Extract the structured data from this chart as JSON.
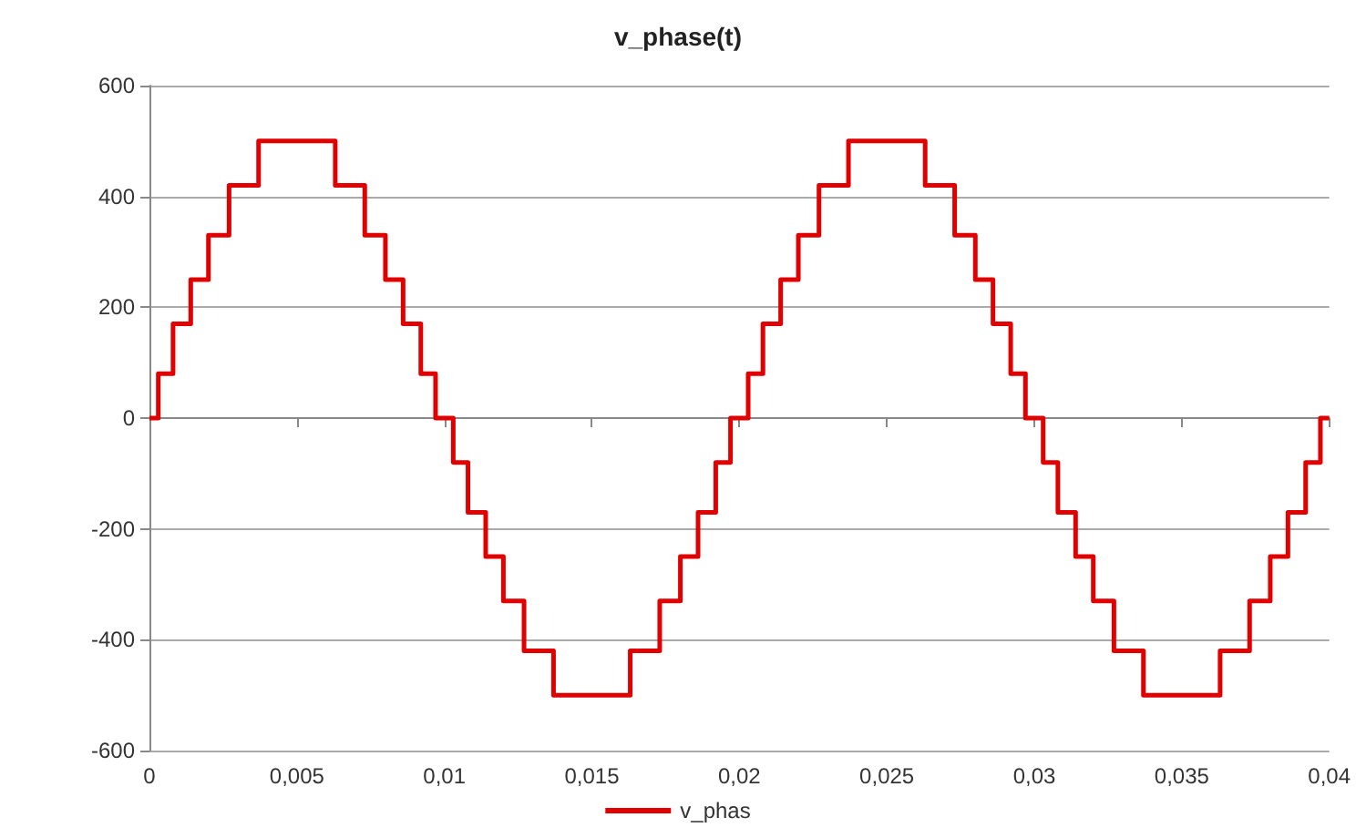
{
  "chart_data": {
    "type": "step",
    "title": "v_phase(t)",
    "x": [
      0,
      0.0003,
      0.0008,
      0.0014,
      0.002,
      0.0027,
      0.0037,
      0.0063,
      0.0073,
      0.008,
      0.0086,
      0.0092,
      0.0097,
      0.0103,
      0.0108,
      0.0114,
      0.012,
      0.0127,
      0.0137,
      0.0163,
      0.0173,
      0.018,
      0.0186,
      0.0192,
      0.0197,
      0.0203,
      0.0208,
      0.0214,
      0.022,
      0.0227,
      0.0237,
      0.0263,
      0.0273,
      0.028,
      0.0286,
      0.0292,
      0.0297,
      0.0303,
      0.0308,
      0.0314,
      0.032,
      0.0327,
      0.0337,
      0.0363,
      0.0373,
      0.038,
      0.0386,
      0.0392,
      0.0397,
      0.04
    ],
    "series": [
      {
        "name": "v_phas",
        "color": "#e00000",
        "values": [
          0,
          80,
          170,
          250,
          330,
          420,
          500,
          420,
          330,
          250,
          170,
          80,
          0,
          -80,
          -170,
          -250,
          -330,
          -420,
          -500,
          -420,
          -330,
          -250,
          -170,
          -80,
          0,
          80,
          170,
          250,
          330,
          420,
          500,
          420,
          330,
          250,
          170,
          80,
          0,
          -80,
          -170,
          -250,
          -330,
          -420,
          -500,
          -420,
          -330,
          -250,
          -170,
          -80,
          0,
          0
        ]
      }
    ],
    "xlim": [
      0,
      0.04
    ],
    "xticks": [
      0,
      {
        "value": 0.005,
        "label": "0,005"
      },
      {
        "value": 0.01,
        "label": "0,01"
      },
      {
        "value": 0.015,
        "label": "0,015"
      },
      {
        "value": 0.02,
        "label": "0,02"
      },
      {
        "value": 0.025,
        "label": "0,025"
      },
      {
        "value": 0.03,
        "label": "0,03"
      },
      {
        "value": 0.035,
        "label": "0,035"
      },
      {
        "value": 0.04,
        "label": "0,04"
      }
    ],
    "ylim": [
      -600,
      600
    ],
    "yticks": [
      -600,
      -400,
      -200,
      0,
      200,
      400,
      600
    ],
    "grid": "y",
    "legend": "bottom",
    "marker": "none",
    "line_style": "solid"
  }
}
